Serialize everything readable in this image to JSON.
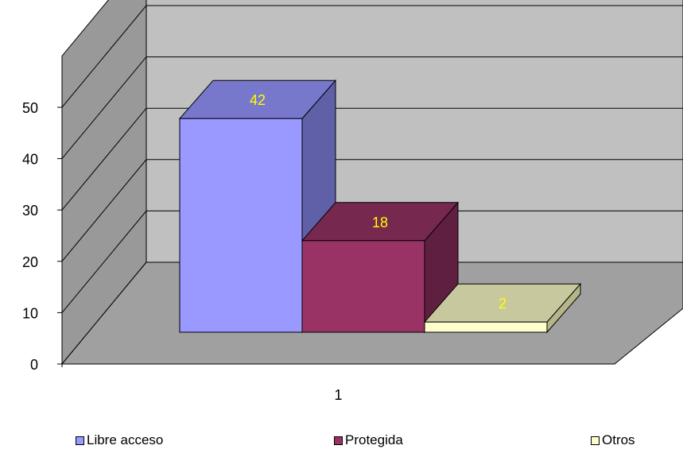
{
  "chart_data": {
    "type": "bar",
    "categories": [
      "1"
    ],
    "series": [
      {
        "name": "Libre acceso",
        "values": [
          42
        ]
      },
      {
        "name": "Protegida",
        "values": [
          18
        ]
      },
      {
        "name": "Otros",
        "values": [
          2
        ]
      }
    ],
    "ylim": [
      0,
      50
    ],
    "yticks": [
      0,
      10,
      20,
      30,
      40,
      50
    ],
    "grid": true,
    "legend": "bottom",
    "three_d": true,
    "colors": {
      "front": [
        "#9999ff",
        "#993366",
        "#ffffcc"
      ],
      "top": [
        "#7777cc",
        "#77284f",
        "#c8c89e"
      ],
      "side": [
        "#6060a8",
        "#5f1f40",
        "#b5b58a"
      ],
      "back_wall": "#c0c0c0",
      "side_wall": "#999999",
      "floor": "#a0a0a0",
      "data_label": "#ffff00"
    }
  }
}
